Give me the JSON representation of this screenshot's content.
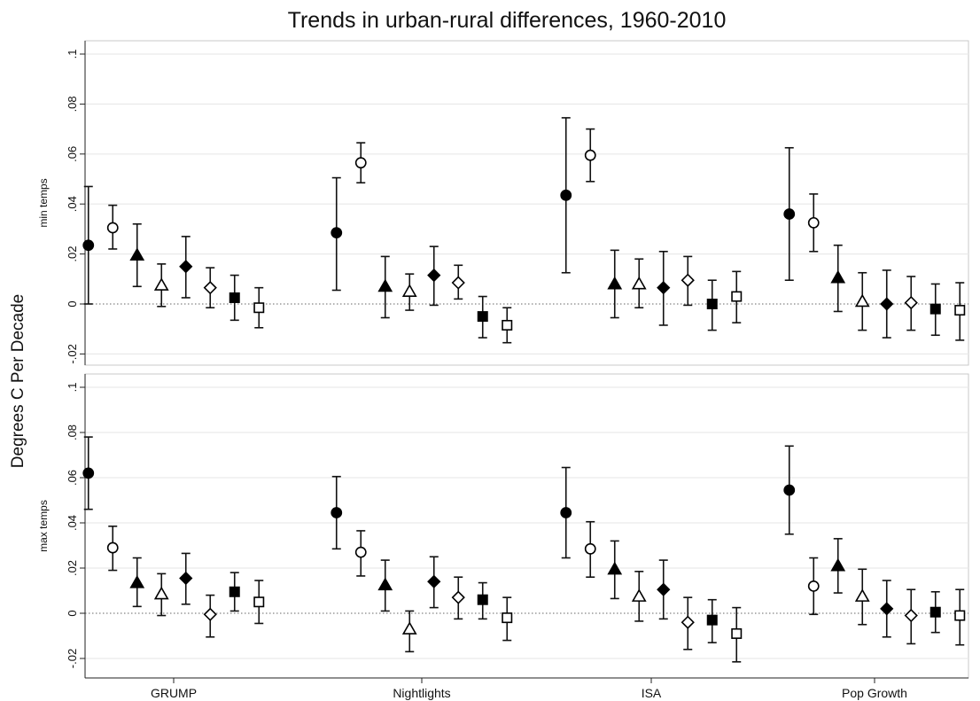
{
  "chart_data": {
    "type": "scatter",
    "title": "Trends in urban-rural differences, 1960-2010",
    "ylabel": "Degrees C Per Decade",
    "xlabel": "",
    "categories": [
      "GRUMP",
      "Nightlights",
      "ISA",
      "Pop Growth"
    ],
    "ylim": [
      -0.025,
      0.105
    ],
    "yticks": [
      -0.02,
      0,
      0.02,
      0.04,
      0.06,
      0.08,
      0.1
    ],
    "ytick_labels": [
      "-.02",
      "0",
      ".02",
      ".04",
      ".06",
      ".08",
      ".1"
    ],
    "grid": true,
    "zero_line": "dotted",
    "markers": [
      "filled-circle",
      "open-circle",
      "filled-triangle",
      "open-triangle",
      "filled-diamond",
      "open-diamond",
      "filled-square",
      "open-square"
    ],
    "panels": [
      {
        "label": "min temps",
        "groups": [
          {
            "category": "GRUMP",
            "points": [
              {
                "y": 0.0235,
                "lo": 0.0,
                "hi": 0.047
              },
              {
                "y": 0.0305,
                "lo": 0.022,
                "hi": 0.0395
              },
              {
                "y": 0.0195,
                "lo": 0.007,
                "hi": 0.032
              },
              {
                "y": 0.0075,
                "lo": -0.001,
                "hi": 0.016
              },
              {
                "y": 0.015,
                "lo": 0.0025,
                "hi": 0.027
              },
              {
                "y": 0.0065,
                "lo": -0.0015,
                "hi": 0.0145
              },
              {
                "y": 0.0025,
                "lo": -0.0065,
                "hi": 0.0115
              },
              {
                "y": -0.0015,
                "lo": -0.0095,
                "hi": 0.0065
              }
            ]
          },
          {
            "category": "Nightlights",
            "points": [
              {
                "y": 0.0285,
                "lo": 0.0055,
                "hi": 0.0505
              },
              {
                "y": 0.0565,
                "lo": 0.0485,
                "hi": 0.0645
              },
              {
                "y": 0.007,
                "lo": -0.0055,
                "hi": 0.019
              },
              {
                "y": 0.005,
                "lo": -0.0025,
                "hi": 0.012
              },
              {
                "y": 0.0115,
                "lo": -0.0005,
                "hi": 0.023
              },
              {
                "y": 0.0085,
                "lo": 0.002,
                "hi": 0.0155
              },
              {
                "y": -0.005,
                "lo": -0.0135,
                "hi": 0.003
              },
              {
                "y": -0.0085,
                "lo": -0.0155,
                "hi": -0.0015
              }
            ]
          },
          {
            "category": "ISA",
            "points": [
              {
                "y": 0.0435,
                "lo": 0.0125,
                "hi": 0.0745
              },
              {
                "y": 0.0595,
                "lo": 0.049,
                "hi": 0.07
              },
              {
                "y": 0.008,
                "lo": -0.0055,
                "hi": 0.0215
              },
              {
                "y": 0.008,
                "lo": -0.0015,
                "hi": 0.018
              },
              {
                "y": 0.0065,
                "lo": -0.0085,
                "hi": 0.021
              },
              {
                "y": 0.0095,
                "lo": -0.0005,
                "hi": 0.019
              },
              {
                "y": 0.0,
                "lo": -0.0105,
                "hi": 0.0095
              },
              {
                "y": 0.003,
                "lo": -0.0075,
                "hi": 0.013
              }
            ]
          },
          {
            "category": "Pop Growth",
            "points": [
              {
                "y": 0.036,
                "lo": 0.0095,
                "hi": 0.0625
              },
              {
                "y": 0.0325,
                "lo": 0.021,
                "hi": 0.044
              },
              {
                "y": 0.0105,
                "lo": -0.003,
                "hi": 0.0235
              },
              {
                "y": 0.001,
                "lo": -0.0105,
                "hi": 0.0125
              },
              {
                "y": 0.0,
                "lo": -0.0135,
                "hi": 0.0135
              },
              {
                "y": 0.0005,
                "lo": -0.0105,
                "hi": 0.011
              },
              {
                "y": -0.002,
                "lo": -0.0125,
                "hi": 0.008
              },
              {
                "y": -0.0025,
                "lo": -0.0145,
                "hi": 0.0085
              }
            ]
          }
        ]
      },
      {
        "label": "max temps",
        "groups": [
          {
            "category": "GRUMP",
            "points": [
              {
                "y": 0.062,
                "lo": 0.046,
                "hi": 0.078
              },
              {
                "y": 0.029,
                "lo": 0.019,
                "hi": 0.0385
              },
              {
                "y": 0.0135,
                "lo": 0.003,
                "hi": 0.0245
              },
              {
                "y": 0.0085,
                "lo": -0.001,
                "hi": 0.0175
              },
              {
                "y": 0.0155,
                "lo": 0.004,
                "hi": 0.0265
              },
              {
                "y": -0.0005,
                "lo": -0.0105,
                "hi": 0.008
              },
              {
                "y": 0.0095,
                "lo": 0.001,
                "hi": 0.018
              },
              {
                "y": 0.005,
                "lo": -0.0045,
                "hi": 0.0145
              }
            ]
          },
          {
            "category": "Nightlights",
            "points": [
              {
                "y": 0.0445,
                "lo": 0.0285,
                "hi": 0.0605
              },
              {
                "y": 0.027,
                "lo": 0.0165,
                "hi": 0.0365
              },
              {
                "y": 0.0125,
                "lo": 0.001,
                "hi": 0.0235
              },
              {
                "y": -0.007,
                "lo": -0.017,
                "hi": 0.001
              },
              {
                "y": 0.014,
                "lo": 0.0025,
                "hi": 0.025
              },
              {
                "y": 0.007,
                "lo": -0.0025,
                "hi": 0.016
              },
              {
                "y": 0.006,
                "lo": -0.0025,
                "hi": 0.0135
              },
              {
                "y": -0.002,
                "lo": -0.012,
                "hi": 0.007
              }
            ]
          },
          {
            "category": "ISA",
            "points": [
              {
                "y": 0.0445,
                "lo": 0.0245,
                "hi": 0.0645
              },
              {
                "y": 0.0285,
                "lo": 0.016,
                "hi": 0.0405
              },
              {
                "y": 0.0195,
                "lo": 0.0065,
                "hi": 0.032
              },
              {
                "y": 0.0075,
                "lo": -0.0035,
                "hi": 0.0185
              },
              {
                "y": 0.0105,
                "lo": -0.0025,
                "hi": 0.0235
              },
              {
                "y": -0.004,
                "lo": -0.016,
                "hi": 0.007
              },
              {
                "y": -0.003,
                "lo": -0.013,
                "hi": 0.006
              },
              {
                "y": -0.009,
                "lo": -0.0215,
                "hi": 0.0025
              }
            ]
          },
          {
            "category": "Pop Growth",
            "points": [
              {
                "y": 0.0545,
                "lo": 0.035,
                "hi": 0.074
              },
              {
                "y": 0.012,
                "lo": -0.0005,
                "hi": 0.0245
              },
              {
                "y": 0.021,
                "lo": 0.009,
                "hi": 0.033
              },
              {
                "y": 0.0075,
                "lo": -0.005,
                "hi": 0.0195
              },
              {
                "y": 0.002,
                "lo": -0.0105,
                "hi": 0.0145
              },
              {
                "y": -0.001,
                "lo": -0.0135,
                "hi": 0.0105
              },
              {
                "y": 0.0005,
                "lo": -0.0085,
                "hi": 0.0095
              },
              {
                "y": -0.001,
                "lo": -0.014,
                "hi": 0.0105
              }
            ]
          }
        ]
      }
    ]
  }
}
